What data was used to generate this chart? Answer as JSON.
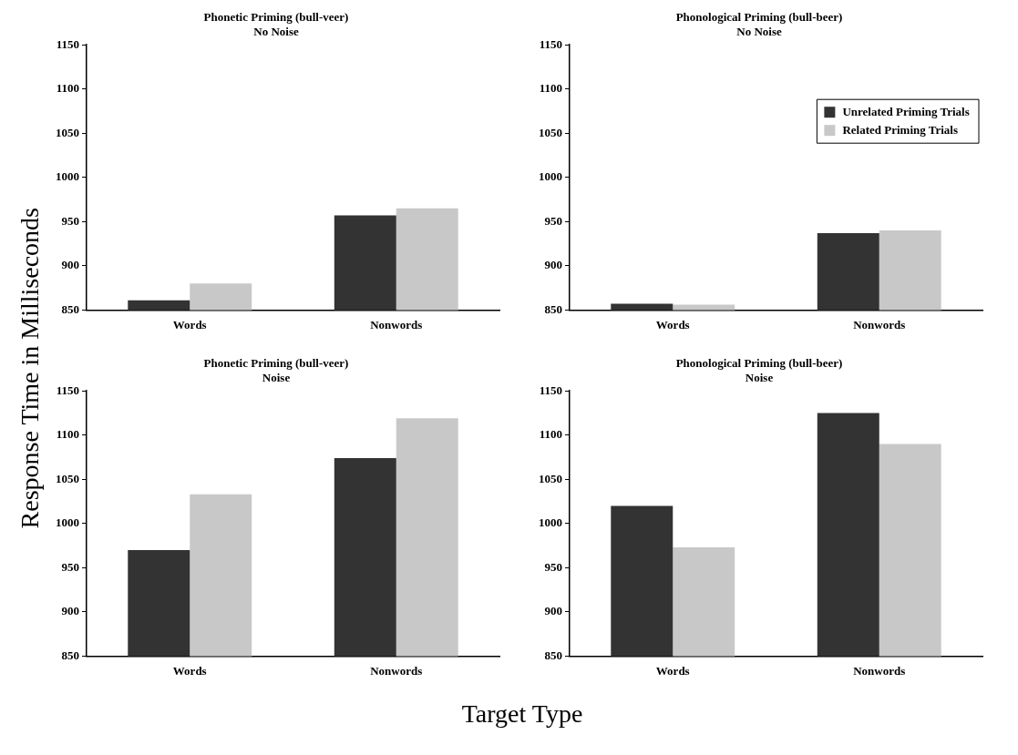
{
  "chart_data": [
    {
      "type": "bar",
      "title": "Phonetic Priming (bull-veer)",
      "subtitle": "No Noise",
      "ylabel": "Response Time in Milliseconds",
      "categories": [
        "Words",
        "Nonwords"
      ],
      "ylim": [
        850,
        1150
      ],
      "yticks": [
        850,
        900,
        950,
        1000,
        1050,
        1100,
        1150
      ],
      "grid": false,
      "legend": false,
      "series": [
        {
          "color": "#333333",
          "values": [
            861,
            957
          ]
        },
        {
          "color": "#c8c8c8",
          "values": [
            880,
            965
          ]
        }
      ]
    },
    {
      "type": "bar",
      "title": "Phonological Priming (bull-beer)",
      "subtitle": "No Noise",
      "categories": [
        "Words",
        "Nonwords"
      ],
      "ylim": [
        850,
        1150
      ],
      "yticks": [
        850,
        900,
        950,
        1000,
        1050,
        1100,
        1150
      ],
      "grid": false,
      "legend": "top right",
      "series": [
        {
          "name": "Unrelated Priming Trials",
          "color": "#333333",
          "values": [
            857,
            937
          ]
        },
        {
          "name": "Related Priming Trials",
          "color": "#c8c8c8",
          "values": [
            856,
            940
          ]
        }
      ]
    },
    {
      "type": "bar",
      "title": "Phonetic Priming (bull-veer)",
      "subtitle": "Noise",
      "xlabel": "Target Type",
      "categories": [
        "Words",
        "Nonwords"
      ],
      "ylim": [
        850,
        1150
      ],
      "yticks": [
        850,
        900,
        950,
        1000,
        1050,
        1100,
        1150
      ],
      "grid": false,
      "legend": false,
      "series": [
        {
          "color": "#333333",
          "values": [
            970,
            1074
          ]
        },
        {
          "color": "#c8c8c8",
          "values": [
            1033,
            1119
          ]
        }
      ]
    },
    {
      "type": "bar",
      "title": "Phonological Priming (bull-beer)",
      "subtitle": "Noise",
      "categories": [
        "Words",
        "Nonwords"
      ],
      "ylim": [
        850,
        1150
      ],
      "yticks": [
        850,
        900,
        950,
        1000,
        1050,
        1100,
        1150
      ],
      "grid": false,
      "legend": false,
      "series": [
        {
          "color": "#333333",
          "values": [
            1020,
            1125
          ]
        },
        {
          "color": "#c8c8c8",
          "values": [
            973,
            1090
          ]
        }
      ]
    }
  ]
}
